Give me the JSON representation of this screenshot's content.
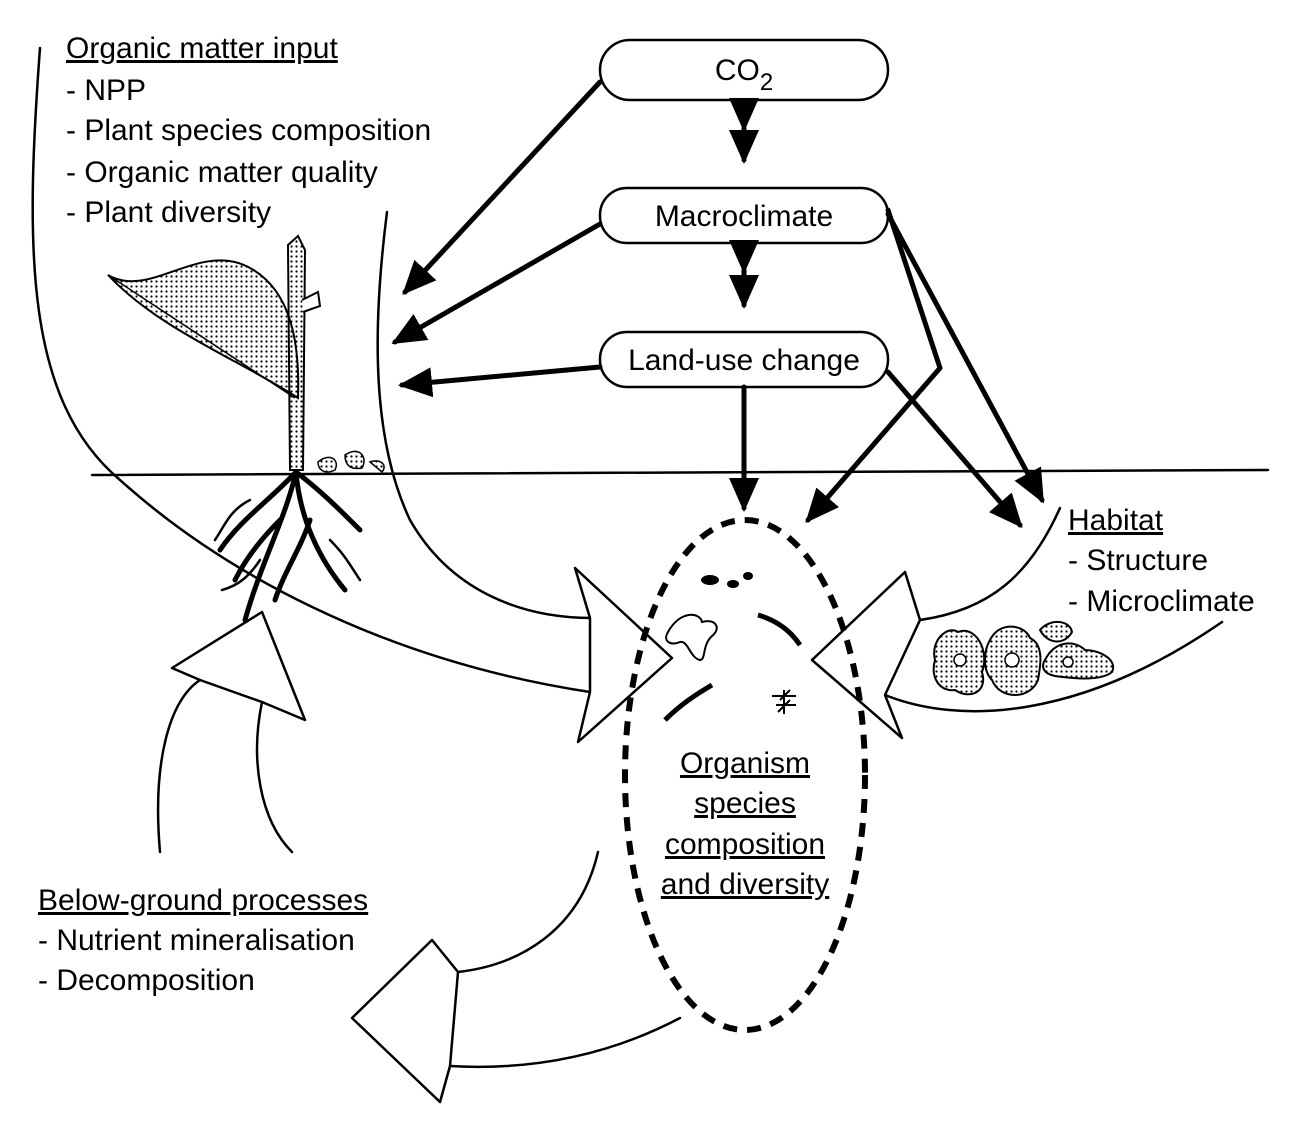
{
  "boxes": {
    "co2": {
      "main": "CO",
      "sub": "2"
    },
    "macroclimate": "Macroclimate",
    "landuse": "Land-use change"
  },
  "organic_input": {
    "heading": "Organic matter input",
    "items": [
      "- NPP",
      "- Plant species composition",
      "- Organic matter quality",
      "- Plant diversity"
    ]
  },
  "habitat": {
    "heading": "Habitat",
    "items": [
      "- Structure",
      "- Microclimate"
    ]
  },
  "belowground": {
    "heading": "Below-ground processes",
    "items": [
      "- Nutrient mineralisation",
      "- Decomposition"
    ]
  },
  "organism": {
    "lines": [
      "Organism",
      "species",
      "composition",
      "and diversity"
    ]
  }
}
